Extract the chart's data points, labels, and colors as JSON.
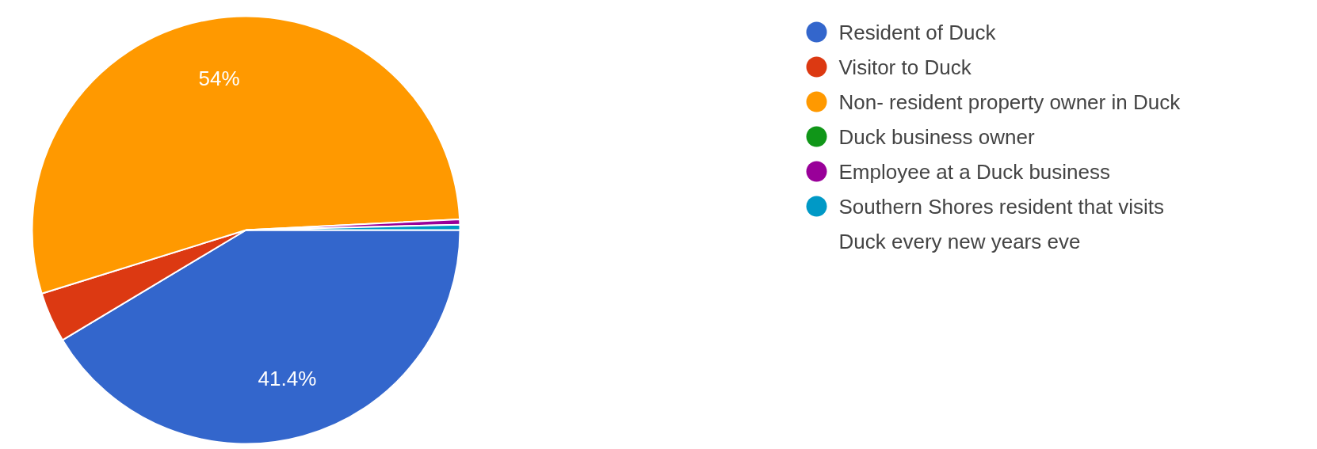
{
  "chart_data": {
    "type": "pie",
    "categories": [
      "Resident of Duck",
      "Visitor to Duck",
      "Non- resident property owner in Duck",
      "Duck business owner",
      "Employee at a Duck business",
      "Southern Shores resident that visits Duck every new years eve"
    ],
    "values": [
      41.4,
      3.8,
      54,
      0,
      0.4,
      0.4
    ],
    "colors": [
      "#3366cc",
      "#dc3912",
      "#ff9900",
      "#109618",
      "#990099",
      "#0099c6"
    ],
    "value_labels": [
      "41.4%",
      null,
      "54%",
      null,
      null,
      null
    ],
    "legend": "right"
  }
}
